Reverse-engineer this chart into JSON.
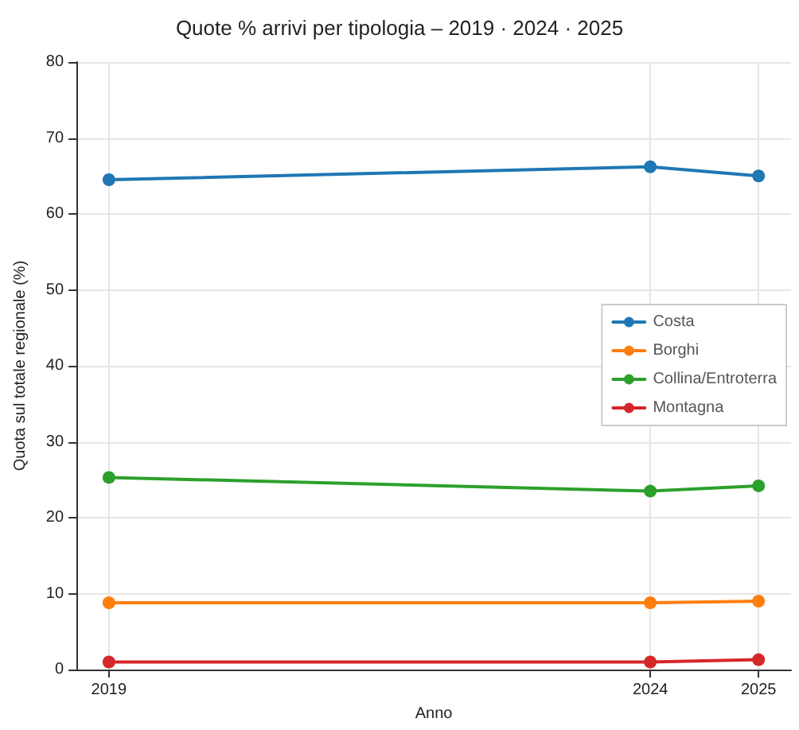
{
  "chart_data": {
    "type": "line",
    "title": "Quote % arrivi per tipologia – 2019 · 2024 · 2025",
    "xlabel": "Anno",
    "ylabel": "Quota sul totale regionale (%)",
    "x": [
      2019,
      2024,
      2025
    ],
    "xlim": [
      2018.7,
      2025.3
    ],
    "xticks": [
      2019,
      2024,
      2025
    ],
    "ylim": [
      0,
      80
    ],
    "yticks": [
      0,
      10,
      20,
      30,
      40,
      50,
      60,
      70,
      80
    ],
    "series": [
      {
        "name": "Costa",
        "color": "#1f77b4",
        "values": [
          64.5,
          66.2,
          65.0
        ]
      },
      {
        "name": "Borghi",
        "color": "#ff7f0e",
        "values": [
          8.8,
          8.8,
          9.0
        ]
      },
      {
        "name": "Collina/Entroterra",
        "color": "#2ca02c",
        "values": [
          25.3,
          23.5,
          24.2
        ]
      },
      {
        "name": "Montagna",
        "color": "#d62728",
        "values": [
          1.0,
          1.0,
          1.3
        ]
      }
    ],
    "grid": true,
    "legend": "right",
    "marker": "circle",
    "line_style": "solid"
  }
}
